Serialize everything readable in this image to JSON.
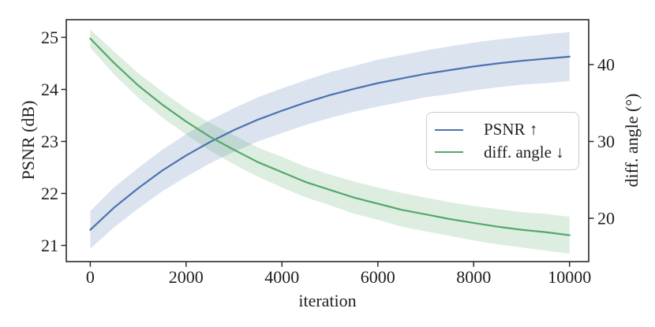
{
  "chart_data": {
    "type": "line",
    "title": "",
    "xlabel": "iteration",
    "ylabel_left": "PSNR (dB)",
    "ylabel_right": "diff. angle (°)",
    "grid": false,
    "background": "#ffffff",
    "axis_color": "#2b2b2b",
    "text_color": "#1f1f1f",
    "xlim": [
      -500,
      10400
    ],
    "ylim_left": [
      20.69,
      25.34
    ],
    "ylim_right": [
      14.36,
      45.85
    ],
    "x_ticks": [
      0,
      2000,
      4000,
      6000,
      8000,
      10000
    ],
    "y_ticks_left": [
      21,
      22,
      23,
      24,
      25
    ],
    "y_ticks_right": [
      20,
      30,
      40
    ],
    "legend": {
      "position": "center right",
      "framed": true
    },
    "x": [
      0,
      500,
      1000,
      1500,
      2000,
      2500,
      3000,
      3500,
      4000,
      4500,
      5000,
      5500,
      6000,
      6500,
      7000,
      7500,
      8000,
      8500,
      9000,
      9500,
      10000
    ],
    "series": [
      {
        "label": "PSNR ↑",
        "slug": "psnr",
        "axis": "left",
        "color": "#4c72b0",
        "band_alpha": 0.2,
        "values": [
          21.3,
          21.73,
          22.1,
          22.44,
          22.73,
          22.99,
          23.22,
          23.42,
          23.59,
          23.75,
          23.89,
          24.01,
          24.12,
          24.21,
          24.3,
          24.37,
          24.44,
          24.5,
          24.55,
          24.59,
          24.63
        ],
        "lo": [
          20.94,
          21.35,
          21.71,
          22.04,
          22.32,
          22.58,
          22.8,
          23.0,
          23.16,
          23.32,
          23.45,
          23.57,
          23.67,
          23.76,
          23.85,
          23.91,
          23.98,
          24.04,
          24.09,
          24.12,
          24.16
        ],
        "hi": [
          21.66,
          22.12,
          22.49,
          22.84,
          23.14,
          23.41,
          23.64,
          23.85,
          24.02,
          24.18,
          24.33,
          24.45,
          24.57,
          24.66,
          24.75,
          24.83,
          24.9,
          24.96,
          25.01,
          25.06,
          25.1
        ]
      },
      {
        "label": "diff. angle ↓",
        "slug": "diff-angle",
        "axis": "right",
        "color": "#55a868",
        "band_alpha": 0.2,
        "values": [
          43.4,
          40.2,
          37.3,
          34.8,
          32.6,
          30.6,
          28.9,
          27.3,
          26.0,
          24.7,
          23.7,
          22.7,
          21.9,
          21.1,
          20.5,
          19.9,
          19.4,
          18.9,
          18.5,
          18.2,
          17.8
        ],
        "lo": [
          42.2,
          38.7,
          35.7,
          33.1,
          30.9,
          28.8,
          27.0,
          25.4,
          24.0,
          22.7,
          21.7,
          20.6,
          19.8,
          18.9,
          18.3,
          17.7,
          17.1,
          16.6,
          16.2,
          15.8,
          15.4
        ],
        "hi": [
          44.6,
          41.7,
          38.9,
          36.5,
          34.3,
          32.4,
          30.8,
          29.2,
          28.0,
          26.7,
          25.7,
          24.8,
          24.0,
          23.3,
          22.7,
          22.1,
          21.6,
          21.2,
          20.8,
          20.6,
          20.2
        ]
      }
    ]
  }
}
